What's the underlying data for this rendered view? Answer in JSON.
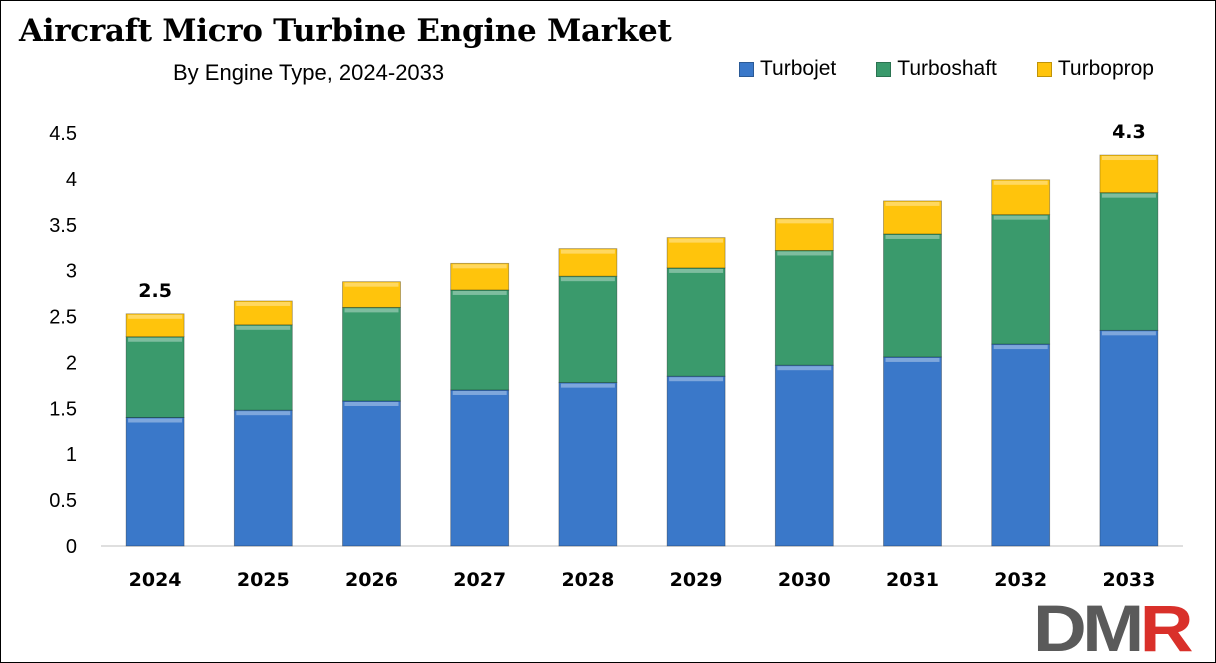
{
  "header": {
    "title": "Aircraft Micro Turbine Engine Market",
    "subtitle": "By Engine Type, 2024-2033"
  },
  "logo": {
    "text": "DMR"
  },
  "colors": {
    "Turbojet": "#3a78c9",
    "Turboshaft": "#3a9a6c",
    "Turboprop": "#ffc40c",
    "logo_dark": "#5a5a5a",
    "logo_red": "#d9302a"
  },
  "chart_data": {
    "type": "bar",
    "stacked": true,
    "categories": [
      "2024",
      "2025",
      "2026",
      "2027",
      "2028",
      "2029",
      "2030",
      "2031",
      "2032",
      "2033"
    ],
    "series": [
      {
        "name": "Turbojet",
        "values": [
          1.4,
          1.48,
          1.58,
          1.7,
          1.78,
          1.85,
          1.97,
          2.06,
          2.2,
          2.35
        ]
      },
      {
        "name": "Turboshaft",
        "values": [
          0.88,
          0.93,
          1.02,
          1.09,
          1.16,
          1.18,
          1.25,
          1.34,
          1.41,
          1.5
        ]
      },
      {
        "name": "Turboprop",
        "values": [
          0.25,
          0.26,
          0.28,
          0.29,
          0.3,
          0.33,
          0.35,
          0.36,
          0.38,
          0.41
        ]
      }
    ],
    "data_labels": [
      {
        "category": "2024",
        "text": "2.5"
      },
      {
        "category": "2033",
        "text": "4.3"
      }
    ],
    "yticks": [
      "0",
      "0.5",
      "1",
      "1.5",
      "2",
      "2.5",
      "3",
      "3.5",
      "4",
      "4.5"
    ],
    "ylim": [
      0,
      4.5
    ],
    "grid": false,
    "legend_position": "top-right"
  }
}
